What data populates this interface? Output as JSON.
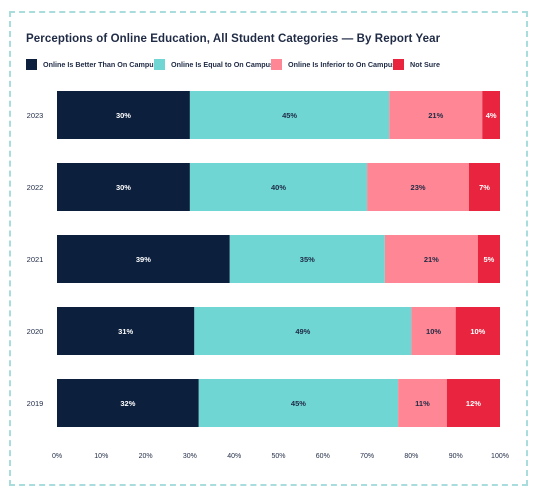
{
  "chart_data": {
    "type": "bar",
    "orientation": "horizontal",
    "stacked": true,
    "title": "Perceptions of Online Education, All Student Categories — By Report Year",
    "categories": [
      "2023",
      "2022",
      "2021",
      "2020",
      "2019"
    ],
    "series": [
      {
        "name": "Online Is Better Than On Campus",
        "color": "#0c1f3d",
        "label_color": "#ffffff",
        "values": [
          30,
          30,
          39,
          31,
          32
        ]
      },
      {
        "name": "Online Is Equal to On Campus",
        "color": "#6fd6d4",
        "label_color": "#1f2a44",
        "values": [
          45,
          40,
          35,
          49,
          45
        ]
      },
      {
        "name": "Online Is Inferior to On Campus",
        "color": "#ff8795",
        "label_color": "#1f2a44",
        "values": [
          21,
          23,
          21,
          10,
          11
        ]
      },
      {
        "name": "Not Sure",
        "color": "#e8243e",
        "label_color": "#ffffff",
        "values": [
          4,
          7,
          5,
          10,
          12
        ]
      }
    ],
    "xlim": [
      0,
      100
    ],
    "x_ticks": [
      "0%",
      "10%",
      "20%",
      "30%",
      "40%",
      "50%",
      "60%",
      "70%",
      "80%",
      "90%",
      "100%"
    ],
    "value_suffix": "%",
    "grid": false,
    "legend_position": "top-left"
  }
}
